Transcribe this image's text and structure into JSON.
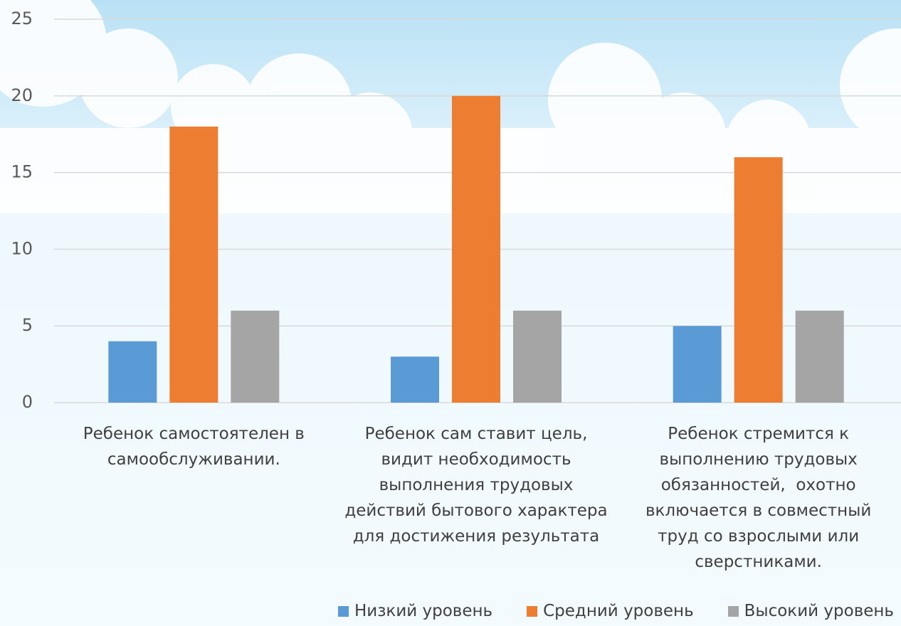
{
  "chart_data": {
    "type": "bar",
    "categories": [
      "Ребенок самостоятелен в самообслуживании.",
      "Ребенок сам ставит цель, видит необходимость выполнения трудовых действий бытового характера для достижения результата",
      "Ребенок стремится к выполнению трудовых обязанностей,  охотно включается в совместный труд со взрослыми или сверстниками."
    ],
    "series": [
      {
        "name": "Низкий уровень",
        "color": "#5b9bd5",
        "values": [
          4,
          3,
          5
        ]
      },
      {
        "name": "Средний уровень",
        "color": "#ed7d31",
        "values": [
          18,
          20,
          16
        ]
      },
      {
        "name": "Высокий уровень",
        "color": "#a5a5a5",
        "values": [
          6,
          6,
          6
        ]
      }
    ],
    "ylim": [
      0,
      25
    ],
    "yticks": [
      0,
      5,
      10,
      15,
      20,
      25
    ],
    "grid": true,
    "legend": "bottom"
  }
}
